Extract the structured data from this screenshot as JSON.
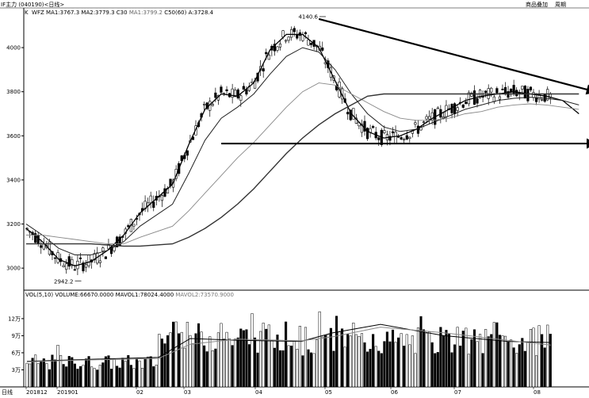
{
  "header": {
    "title": "IF主力 (040190)<日线>",
    "right_btn1": "商品叠加",
    "right_btn2": "周期"
  },
  "price_panel": {
    "legend": {
      "k": "K",
      "wfz": "WFZ",
      "ma1": "MA1:3767.3",
      "ma2": "MA2:3779.3",
      "c30": "C30",
      "ma1b": "MA1:3799.2",
      "c50": "C50(60)",
      "a": "A:3728.4"
    },
    "y_ticks": [
      "4000",
      "3800",
      "3600",
      "3400",
      "3200",
      "3000"
    ],
    "hi_label": "4140.6",
    "lo_label": "2942.2"
  },
  "volume_panel": {
    "legend": {
      "vol": "VOL(5,10)",
      "volume": "VOLUME:66670.0000",
      "mavol1": "MAVOL1:78024.4000",
      "mavol2": "MAVOL2:73570.9000"
    },
    "y_ticks": [
      "12万",
      "9万",
      "6万",
      "3万"
    ]
  },
  "bottom_labels": [
    "日线",
    "201812",
    "201901",
    "02",
    "03",
    "04",
    "05",
    "06",
    "07",
    "08"
  ],
  "chart_data": {
    "type": "line",
    "title": "",
    "xlabel": "",
    "ylabel": "",
    "ylim": [
      2900,
      4180
    ],
    "x": [
      "2018-12-14",
      "2018-12-21",
      "2018-12-28",
      "2019-01-04",
      "2019-01-11",
      "2019-01-18",
      "2019-01-25",
      "2019-02-01",
      "2019-02-15",
      "2019-02-22",
      "2019-03-01",
      "2019-03-08",
      "2019-03-15",
      "2019-03-22",
      "2019-03-29",
      "2019-04-05",
      "2019-04-12",
      "2019-04-19",
      "2019-04-26",
      "2019-05-03",
      "2019-05-10",
      "2019-05-17",
      "2019-05-24",
      "2019-05-31",
      "2019-06-07",
      "2019-06-14",
      "2019-06-21",
      "2019-06-28",
      "2019-07-05",
      "2019-07-12",
      "2019-07-19",
      "2019-07-26",
      "2019-08-02",
      "2019-08-09"
    ],
    "series": [
      {
        "name": "MA1",
        "values": [
          3180,
          3120,
          3040,
          3010,
          3030,
          3080,
          3150,
          3250,
          3380,
          3560,
          3720,
          3790,
          3780,
          3840,
          3990,
          4060,
          4060,
          4000,
          3850,
          3700,
          3620,
          3590,
          3600,
          3630,
          3680,
          3720,
          3760,
          3780,
          3790,
          3800,
          3790,
          3780,
          3760,
          3700
        ]
      },
      {
        "name": "MA2",
        "values": [
          3200,
          3150,
          3090,
          3060,
          3060,
          3080,
          3120,
          3190,
          3290,
          3430,
          3580,
          3680,
          3730,
          3790,
          3880,
          3960,
          4000,
          3980,
          3900,
          3790,
          3700,
          3640,
          3620,
          3630,
          3660,
          3690,
          3720,
          3740,
          3760,
          3770,
          3775,
          3770,
          3760,
          3740
        ]
      },
      {
        "name": "C30",
        "values": [
          3150,
          3150,
          3140,
          3130,
          3120,
          3110,
          3110,
          3140,
          3190,
          3260,
          3340,
          3420,
          3500,
          3570,
          3650,
          3730,
          3800,
          3840,
          3830,
          3790,
          3750,
          3710,
          3680,
          3670,
          3670,
          3680,
          3700,
          3710,
          3730,
          3740,
          3745,
          3740,
          3730,
          3720
        ]
      },
      {
        "name": "C50",
        "values": [
          3110,
          3110,
          3110,
          3110,
          3110,
          3105,
          3100,
          3100,
          3110,
          3140,
          3180,
          3230,
          3290,
          3360,
          3440,
          3520,
          3590,
          3650,
          3700,
          3740,
          3780,
          3790,
          3790,
          3790,
          3790,
          3790,
          3790,
          3790,
          3790,
          3790,
          3790,
          3790,
          3790,
          3790
        ]
      }
    ],
    "annotations": {
      "high": 4140.6,
      "low": 2942.2,
      "trendline_upper": {
        "from": [
          "2019-04-19",
          4130
        ],
        "to": [
          "2019-08-16",
          3800
        ]
      },
      "trendline_lower": {
        "from": [
          "2019-03-08",
          3565
        ],
        "to": [
          "2019-08-16",
          3565
        ]
      }
    },
    "volume": {
      "ylim": [
        0,
        170000
      ],
      "ticks": [
        30000,
        60000,
        90000,
        120000
      ],
      "last_volume": 66670,
      "mavol1": 78024.4,
      "mavol2": 73570.9
    }
  }
}
